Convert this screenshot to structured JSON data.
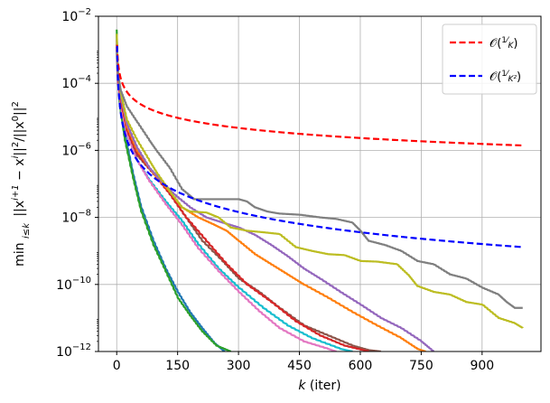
{
  "chart_data": {
    "type": "line",
    "xlabel": "k (iter)",
    "ylabel": "min_{i≤k} ||x^{i+1} − x^i||² / ||x^0||²",
    "xlabel_parts": {
      "var": "k",
      "rest": " (iter)"
    },
    "ylabel_parts": {
      "min": "min",
      "sub": "i≤k",
      "expr": "||x",
      "sup1": "i+1",
      "minus": " − x",
      "sup2": "i",
      "norm": "||",
      "sq": "2",
      "div": "/||x",
      "sup3": "0",
      "norm2": "||",
      "sq2": "2"
    },
    "xlim": [
      -45,
      1045
    ],
    "ylim": [
      1e-12,
      0.01
    ],
    "yscale": "log",
    "xticks": [
      0,
      150,
      300,
      450,
      600,
      750,
      900
    ],
    "xtick_labels": [
      "0",
      "150",
      "300",
      "450",
      "600",
      "750",
      "900"
    ],
    "yticks": [
      1e-12,
      1e-10,
      1e-08,
      1e-06,
      0.0001,
      0.01
    ],
    "ytick_labels": [
      {
        "base": "10",
        "exp": "−12"
      },
      {
        "base": "10",
        "exp": "−10"
      },
      {
        "base": "10",
        "exp": "−8"
      },
      {
        "base": "10",
        "exp": "−6"
      },
      {
        "base": "10",
        "exp": "−4"
      },
      {
        "base": "10",
        "exp": "−2"
      }
    ],
    "grid": true,
    "legend": {
      "placement": "top-right",
      "entries": [
        {
          "label": "O(1/K)",
          "color": "#ff0000",
          "style": "dashed",
          "text": {
            "O": "𝒪(",
            "num": "1",
            "den": "K",
            "close": ")"
          }
        },
        {
          "label": "O(1/K²)",
          "color": "#0000ff",
          "style": "dashed",
          "text": {
            "O": "𝒪(",
            "num": "1",
            "den": "K²",
            "close": ")"
          }
        }
      ]
    },
    "reference_series": [
      {
        "color": "#ff0000",
        "style": "dashed",
        "form": "c/k",
        "c": 0.0014,
        "x_start": 1,
        "x_end": 1000
      },
      {
        "color": "#0000ff",
        "style": "dashed",
        "form": "c/k^2",
        "c": 0.0013,
        "x_start": 1,
        "x_end": 1000
      }
    ],
    "series": [
      {
        "color": "#1f77b4",
        "points": [
          [
            0,
            0.003
          ],
          [
            2,
            0.0002
          ],
          [
            8,
            2e-05
          ],
          [
            20,
            3e-06
          ],
          [
            40,
            2e-07
          ],
          [
            60,
            2e-08
          ],
          [
            90,
            2e-09
          ],
          [
            120,
            3e-10
          ],
          [
            150,
            6e-11
          ],
          [
            180,
            1.5e-11
          ],
          [
            210,
            5e-12
          ],
          [
            240,
            1.8e-12
          ],
          [
            265,
            1e-12
          ]
        ]
      },
      {
        "color": "#2ca02c",
        "points": [
          [
            0,
            0.004
          ],
          [
            2,
            0.0002
          ],
          [
            8,
            2e-05
          ],
          [
            20,
            2e-06
          ],
          [
            40,
            1.5e-07
          ],
          [
            60,
            1.5e-08
          ],
          [
            90,
            1.5e-09
          ],
          [
            120,
            2.5e-10
          ],
          [
            150,
            4e-11
          ],
          [
            180,
            1.2e-11
          ],
          [
            210,
            4e-12
          ],
          [
            245,
            1.5e-12
          ],
          [
            280,
            1e-12
          ]
        ]
      },
      {
        "color": "#17becf",
        "points": [
          [
            0,
            0.0008
          ],
          [
            3,
            0.0001
          ],
          [
            10,
            2e-05
          ],
          [
            25,
            3e-06
          ],
          [
            50,
            5e-07
          ],
          [
            80,
            1.3e-07
          ],
          [
            120,
            3e-08
          ],
          [
            160,
            8e-09
          ],
          [
            200,
            1.6e-09
          ],
          [
            250,
            3e-10
          ],
          [
            300,
            8e-11
          ],
          [
            360,
            2e-11
          ],
          [
            420,
            6e-12
          ],
          [
            480,
            2.5e-12
          ],
          [
            550,
            1.2e-12
          ],
          [
            580,
            1e-12
          ]
        ]
      },
      {
        "color": "#e377c2",
        "points": [
          [
            0,
            0.001
          ],
          [
            3,
            0.0001
          ],
          [
            10,
            2e-05
          ],
          [
            25,
            3e-06
          ],
          [
            50,
            5e-07
          ],
          [
            80,
            1.2e-07
          ],
          [
            120,
            2.5e-08
          ],
          [
            160,
            6e-09
          ],
          [
            200,
            1.2e-09
          ],
          [
            250,
            2.5e-10
          ],
          [
            300,
            6e-11
          ],
          [
            350,
            1.6e-11
          ],
          [
            400,
            5e-12
          ],
          [
            460,
            2e-12
          ],
          [
            520,
            1.2e-12
          ],
          [
            540,
            1e-12
          ]
        ]
      },
      {
        "color": "#8c564b",
        "points": [
          [
            0,
            0.0015
          ],
          [
            3,
            0.00015
          ],
          [
            10,
            3e-05
          ],
          [
            25,
            4e-06
          ],
          [
            50,
            7e-07
          ],
          [
            90,
            2e-07
          ],
          [
            130,
            5e-08
          ],
          [
            170,
            1e-08
          ],
          [
            210,
            2e-09
          ],
          [
            260,
            5e-10
          ],
          [
            300,
            1.5e-10
          ],
          [
            350,
            6e-11
          ],
          [
            400,
            2e-11
          ],
          [
            460,
            6e-12
          ],
          [
            520,
            3e-12
          ],
          [
            580,
            1.5e-12
          ],
          [
            620,
            1.1e-12
          ],
          [
            650,
            1e-12
          ]
        ]
      },
      {
        "color": "#d62728",
        "points": [
          [
            0,
            0.0012
          ],
          [
            3,
            0.00015
          ],
          [
            10,
            3e-05
          ],
          [
            25,
            4e-06
          ],
          [
            50,
            8e-07
          ],
          [
            90,
            2e-07
          ],
          [
            130,
            5e-08
          ],
          [
            170,
            1e-08
          ],
          [
            220,
            2e-09
          ],
          [
            270,
            4e-10
          ],
          [
            320,
            1e-10
          ],
          [
            380,
            3e-11
          ],
          [
            440,
            8e-12
          ],
          [
            500,
            3e-12
          ],
          [
            560,
            1.5e-12
          ],
          [
            620,
            1e-12
          ]
        ]
      },
      {
        "color": "#ff7f0e",
        "points": [
          [
            0,
            0.002
          ],
          [
            3,
            0.0002
          ],
          [
            10,
            4e-05
          ],
          [
            25,
            5e-06
          ],
          [
            50,
            1e-06
          ],
          [
            80,
            3e-07
          ],
          [
            100,
            1.5e-07
          ],
          [
            130,
            6e-08
          ],
          [
            160,
            2e-08
          ],
          [
            200,
            1e-08
          ],
          [
            240,
            6e-09
          ],
          [
            270,
            4e-09
          ],
          [
            300,
            2e-09
          ],
          [
            340,
            8e-10
          ],
          [
            380,
            4e-10
          ],
          [
            420,
            2e-10
          ],
          [
            460,
            1e-10
          ],
          [
            520,
            4e-11
          ],
          [
            580,
            1.5e-11
          ],
          [
            640,
            6e-12
          ],
          [
            700,
            2.5e-12
          ],
          [
            740,
            1.2e-12
          ],
          [
            760,
            1e-12
          ]
        ]
      },
      {
        "color": "#9467bd",
        "points": [
          [
            0,
            0.002
          ],
          [
            3,
            0.0002
          ],
          [
            10,
            4e-05
          ],
          [
            25,
            6e-06
          ],
          [
            50,
            1.2e-06
          ],
          [
            80,
            3e-07
          ],
          [
            110,
            1.2e-07
          ],
          [
            140,
            5e-08
          ],
          [
            180,
            2e-08
          ],
          [
            220,
            1e-08
          ],
          [
            260,
            7e-09
          ],
          [
            300,
            5e-09
          ],
          [
            340,
            3e-09
          ],
          [
            380,
            1.5e-09
          ],
          [
            420,
            7e-10
          ],
          [
            460,
            3e-10
          ],
          [
            500,
            1.5e-10
          ],
          [
            550,
            6e-11
          ],
          [
            600,
            2.5e-11
          ],
          [
            650,
            1e-11
          ],
          [
            700,
            5e-12
          ],
          [
            750,
            2e-12
          ],
          [
            780,
            1e-12
          ]
        ]
      },
      {
        "color": "#bcbd22",
        "points": [
          [
            0,
            0.003
          ],
          [
            3,
            0.0002
          ],
          [
            10,
            5e-05
          ],
          [
            25,
            8e-06
          ],
          [
            50,
            2e-06
          ],
          [
            80,
            5e-07
          ],
          [
            100,
            2e-07
          ],
          [
            130,
            6e-08
          ],
          [
            160,
            2e-08
          ],
          [
            180,
            1.5e-08
          ],
          [
            220,
            1.4e-08
          ],
          [
            250,
            1e-08
          ],
          [
            280,
            5e-09
          ],
          [
            320,
            4e-09
          ],
          [
            360,
            3.6e-09
          ],
          [
            400,
            3.2e-09
          ],
          [
            440,
            1.3e-09
          ],
          [
            480,
            1e-09
          ],
          [
            520,
            8e-10
          ],
          [
            560,
            7.5e-10
          ],
          [
            600,
            5e-10
          ],
          [
            640,
            4.8e-10
          ],
          [
            690,
            4e-10
          ],
          [
            720,
            1.8e-10
          ],
          [
            740,
            9e-11
          ],
          [
            780,
            6e-11
          ],
          [
            820,
            5e-11
          ],
          [
            860,
            3e-11
          ],
          [
            900,
            2.5e-11
          ],
          [
            940,
            1e-11
          ],
          [
            980,
            7e-12
          ],
          [
            1000,
            5e-12
          ]
        ]
      },
      {
        "color": "#7f7f7f",
        "points": [
          [
            0,
            0.001
          ],
          [
            3,
            0.0002
          ],
          [
            10,
            6e-05
          ],
          [
            25,
            2e-05
          ],
          [
            50,
            7e-06
          ],
          [
            80,
            2e-06
          ],
          [
            100,
            9e-07
          ],
          [
            130,
            3e-07
          ],
          [
            160,
            7e-08
          ],
          [
            190,
            3.5e-08
          ],
          [
            220,
            3.5e-08
          ],
          [
            260,
            3.5e-08
          ],
          [
            300,
            3.5e-08
          ],
          [
            320,
            3e-08
          ],
          [
            340,
            2e-08
          ],
          [
            370,
            1.5e-08
          ],
          [
            400,
            1.3e-08
          ],
          [
            450,
            1.2e-08
          ],
          [
            500,
            1e-08
          ],
          [
            540,
            9e-09
          ],
          [
            580,
            7e-09
          ],
          [
            600,
            4e-09
          ],
          [
            620,
            2e-09
          ],
          [
            660,
            1.5e-09
          ],
          [
            700,
            1e-09
          ],
          [
            740,
            5e-10
          ],
          [
            780,
            4e-10
          ],
          [
            820,
            2e-10
          ],
          [
            860,
            1.5e-10
          ],
          [
            900,
            8e-11
          ],
          [
            940,
            5e-11
          ],
          [
            960,
            3e-11
          ],
          [
            980,
            2e-11
          ],
          [
            1000,
            2e-11
          ]
        ]
      }
    ]
  }
}
